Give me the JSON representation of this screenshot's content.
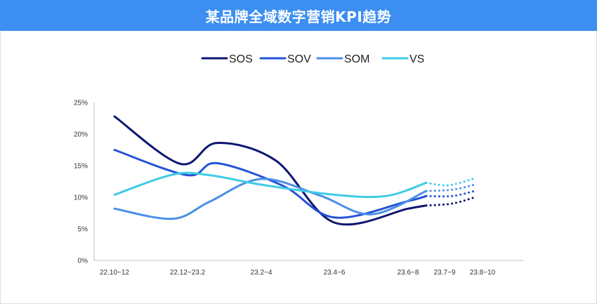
{
  "header": {
    "title": "某品牌全域数字营销KPI趋势"
  },
  "chart_data": {
    "type": "line",
    "title": "某品牌全域数字营销KPI趋势",
    "x_labels": [
      "22.10~12",
      "22.12~23.2",
      "23.2~4",
      "23.4~6",
      "23.6~8",
      "23.7~9",
      "23.8~10"
    ],
    "y_ticks": [
      "0%",
      "5%",
      "10%",
      "15%",
      "20%",
      "25%"
    ],
    "ylim": [
      0,
      25
    ],
    "y_unit": "%",
    "legend_position": "top-center",
    "grid": false,
    "projection_note": "dotted segments after 23.7~9 are projections",
    "series": [
      {
        "name": "SOS",
        "color": "#0d1670",
        "points": [
          [
            0,
            22.8
          ],
          [
            0.9,
            15.3
          ],
          [
            1.4,
            18.6
          ],
          [
            2.2,
            15.8
          ],
          [
            3.0,
            6.0
          ],
          [
            4.0,
            8.2
          ],
          [
            4.5,
            8.7
          ]
        ],
        "projection": [
          [
            4.5,
            8.7
          ],
          [
            5.2,
            9.0
          ],
          [
            5.8,
            10.0
          ]
        ]
      },
      {
        "name": "SOV",
        "color": "#2353d6",
        "points": [
          [
            0,
            17.5
          ],
          [
            1.0,
            13.5
          ],
          [
            1.4,
            15.4
          ],
          [
            2.3,
            11.8
          ],
          [
            3.0,
            6.8
          ],
          [
            4.0,
            9.4
          ],
          [
            4.5,
            10.2
          ]
        ],
        "projection": [
          [
            4.5,
            10.2
          ],
          [
            5.2,
            10.2
          ],
          [
            5.8,
            11.0
          ]
        ]
      },
      {
        "name": "SOM",
        "color": "#4a8fe8",
        "points": [
          [
            0,
            8.2
          ],
          [
            0.8,
            6.6
          ],
          [
            1.3,
            9.3
          ],
          [
            2.0,
            12.9
          ],
          [
            2.8,
            10.3
          ],
          [
            3.5,
            7.3
          ],
          [
            4.5,
            11.0
          ]
        ],
        "projection": [
          [
            4.5,
            11.0
          ],
          [
            5.2,
            11.2
          ],
          [
            5.8,
            12.0
          ]
        ]
      },
      {
        "name": "VS",
        "color": "#3fcbe6",
        "points": [
          [
            0,
            10.4
          ],
          [
            0.8,
            13.6
          ],
          [
            1.3,
            13.5
          ],
          [
            2.0,
            12.0
          ],
          [
            3.0,
            10.4
          ],
          [
            3.7,
            10.2
          ],
          [
            4.5,
            12.3
          ]
        ],
        "projection": [
          [
            4.5,
            12.3
          ],
          [
            5.1,
            11.9
          ],
          [
            5.8,
            13.0
          ]
        ]
      }
    ]
  }
}
